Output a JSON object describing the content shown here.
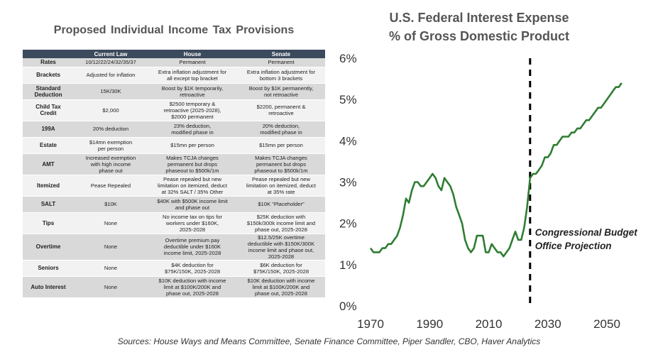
{
  "table": {
    "title": "Proposed  Individual  Income  Tax  Provisions",
    "headers": [
      "",
      "Current Law",
      "House",
      "Senate"
    ],
    "rows": [
      {
        "label": "Rates",
        "current": "10/12/22/24/32/35/37",
        "house": "Permanent",
        "senate": "Permanent"
      },
      {
        "label": "Brackets",
        "current": "Adjusted for inflation",
        "house": "Extra inflation adjustment for\nall except top bracket",
        "senate": "Extra inflation adjustment for\nbottom 3 brackets"
      },
      {
        "label": "Standard\nDeduction",
        "current": "15K/30K",
        "house": "Boost by $1K temporarily,\nretroactive",
        "senate": "Boost by $1K permanently,\nnot retroactive"
      },
      {
        "label": "Child Tax\nCredit",
        "current": "$2,000",
        "house": "$2500 temporary &\nretroactive (2025-2028),\n$2000 permanent",
        "senate": "$2200, permanent &\nretroactive"
      },
      {
        "label": "199A",
        "current": "20% deduction",
        "house": "23% deduction,\nmodified phase in",
        "senate": "20% deduction,\nmodified phase in"
      },
      {
        "label": "Estate",
        "current": "$14mn exemption\nper person",
        "house": "$15mn per person",
        "senate": "$15mn per person"
      },
      {
        "label": "AMT",
        "current": "Increased exemption\nwith high income\nphase out",
        "house": "Makes TCJA changes\npermanent but drops\nphaseout to $500k/1m",
        "senate": "Makes TCJA changes\npermanent but drops\nphaseout to $500k/1m"
      },
      {
        "label": "Itemized",
        "current": "Pease Repealed",
        "house": "Pease repealed but new\nlimitation on itemized, deduct\nat 32% SALT / 35% Other",
        "senate": "Pease repealed but new\nlimitation on itemized, deduct\nat 35% rate"
      },
      {
        "label": "SALT",
        "current": "$10K",
        "house": "$40K with $500K income limit\nand phase out",
        "senate": "$10K \"Placeholder\""
      },
      {
        "label": "Tips",
        "current": "None",
        "house": "No income tax on tips for\nworkers under $160K,\n2025-2028",
        "senate": "$25K deduction with\n$150k/300k income limit and\nphase out, 2025-2028"
      },
      {
        "label": "Overtime",
        "current": "None",
        "house": "Overtime premium pay\ndeductible under $160K\nincome limit, 2025-2028",
        "senate": "$12.5/25K overtime\ndeductible with $150K/300K\nincome limit and phase out,\n2025-2028"
      },
      {
        "label": "Seniors",
        "current": "None",
        "house": "$4K deduction for\n$75K/150K, 2025-2028",
        "senate": "$6K deduction for\n$75K/150K, 2025-2028"
      },
      {
        "label": "Auto Interest",
        "current": "None",
        "house": "$10K deduction with income\nlimit at $100K/200K and\nphase out, 2025-2028",
        "senate": "$10K deduction with income\nlimit at $100K/200K and\nphase out, 2025-2028"
      }
    ]
  },
  "chart_data": {
    "type": "line",
    "title": "U.S. Federal Interest Expense\n% of Gross Domestic Product",
    "xlabel": "",
    "ylabel": "",
    "xlim": [
      1970,
      2056
    ],
    "ylim": [
      0,
      6
    ],
    "x_ticks": [
      1970,
      1990,
      2010,
      2030,
      2050
    ],
    "y_ticks": [
      "0%",
      "1%",
      "2%",
      "3%",
      "4%",
      "5%",
      "6%"
    ],
    "grid": false,
    "color": "#2e7d32",
    "projection_line_year": 2024,
    "annotation": "Congressional  Budget\nOffice Projection",
    "series": [
      {
        "name": "Interest expense % GDP",
        "x": [
          1970,
          1971,
          1972,
          1973,
          1974,
          1975,
          1976,
          1977,
          1978,
          1979,
          1980,
          1981,
          1982,
          1983,
          1984,
          1985,
          1986,
          1987,
          1988,
          1989,
          1990,
          1991,
          1992,
          1993,
          1994,
          1995,
          1996,
          1997,
          1998,
          1999,
          2000,
          2001,
          2002,
          2003,
          2004,
          2005,
          2006,
          2007,
          2008,
          2009,
          2010,
          2011,
          2012,
          2013,
          2014,
          2015,
          2016,
          2017,
          2018,
          2019,
          2020,
          2021,
          2022,
          2023,
          2024,
          2025,
          2026,
          2027,
          2028,
          2029,
          2030,
          2031,
          2032,
          2033,
          2034,
          2035,
          2036,
          2037,
          2038,
          2039,
          2040,
          2041,
          2042,
          2043,
          2044,
          2045,
          2046,
          2047,
          2048,
          2049,
          2050,
          2051,
          2052,
          2053,
          2054,
          2055
        ],
        "values": [
          1.4,
          1.3,
          1.3,
          1.3,
          1.4,
          1.4,
          1.5,
          1.5,
          1.6,
          1.7,
          1.9,
          2.2,
          2.6,
          2.5,
          2.8,
          3.0,
          3.0,
          2.9,
          2.9,
          3.0,
          3.1,
          3.2,
          3.1,
          2.9,
          2.8,
          3.1,
          3.0,
          2.9,
          2.7,
          2.4,
          2.2,
          2.0,
          1.6,
          1.4,
          1.3,
          1.4,
          1.7,
          1.7,
          1.7,
          1.3,
          1.3,
          1.5,
          1.4,
          1.3,
          1.3,
          1.2,
          1.3,
          1.4,
          1.6,
          1.8,
          1.6,
          1.6,
          1.9,
          2.4,
          3.1,
          3.2,
          3.2,
          3.3,
          3.4,
          3.6,
          3.6,
          3.7,
          3.9,
          3.9,
          4.0,
          4.1,
          4.1,
          4.1,
          4.2,
          4.2,
          4.3,
          4.3,
          4.4,
          4.5,
          4.5,
          4.6,
          4.7,
          4.8,
          4.8,
          4.9,
          5.0,
          5.1,
          5.2,
          5.3,
          5.3,
          5.4
        ]
      }
    ]
  },
  "sources": "Sources: House Ways and Means Committee, Senate Finance Committee, Piper Sandler, CBO, Haver Analytics"
}
